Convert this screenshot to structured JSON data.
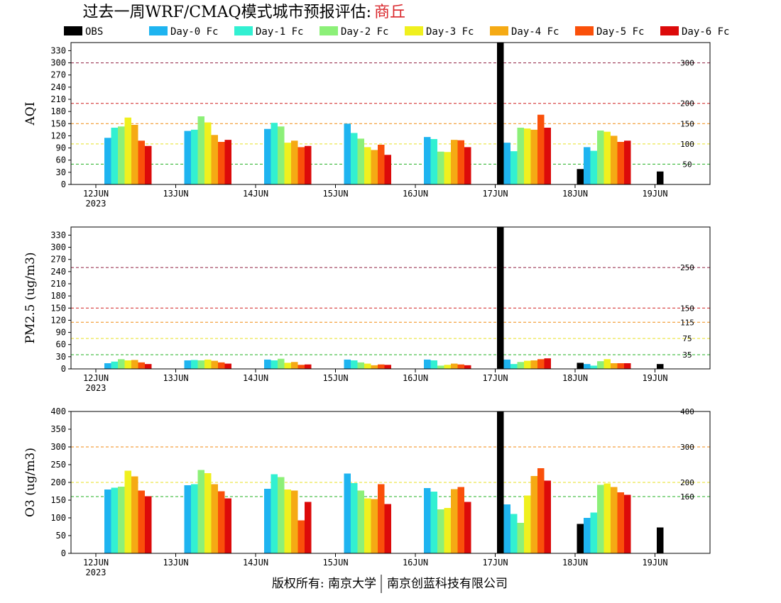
{
  "title_prefix": "过去一周WRF/CMAQ模式城市预报评估:",
  "city": "商丘",
  "footer": {
    "left": "版权所有: 南京大学",
    "right": "南京创蓝科技有限公司"
  },
  "colors": {
    "OBS": "#000000",
    "Day-0 Fc": "#1eb4f0",
    "Day-1 Fc": "#32f0d2",
    "Day-2 Fc": "#8cf078",
    "Day-3 Fc": "#f0f01e",
    "Day-4 Fc": "#f5aa14",
    "Day-5 Fc": "#fa500a",
    "Day-6 Fc": "#dc0a0a"
  },
  "chart_data": [
    {
      "type": "bar",
      "ylabel": "AQI",
      "ylim": [
        0,
        350
      ],
      "yticks": [
        0,
        30,
        60,
        90,
        120,
        150,
        180,
        210,
        240,
        270,
        300,
        330
      ],
      "categories": [
        "12JUN",
        "13JUN",
        "14JUN",
        "15JUN",
        "16JUN",
        "17JUN",
        "18JUN",
        "19JUN"
      ],
      "year_label": "2023",
      "ref_lines": [
        {
          "value": 50,
          "label": "50",
          "color": "#20b020"
        },
        {
          "value": 100,
          "label": "100",
          "color": "#e8e020"
        },
        {
          "value": 150,
          "label": "150",
          "color": "#f08a10"
        },
        {
          "value": 200,
          "label": "200",
          "color": "#d02020"
        },
        {
          "value": 300,
          "label": "300",
          "color": "#902040"
        }
      ],
      "series": [
        {
          "name": "OBS",
          "values": [
            null,
            null,
            null,
            null,
            null,
            350,
            38,
            32
          ]
        },
        {
          "name": "Day-0 Fc",
          "values": [
            115,
            132,
            137,
            150,
            117,
            103,
            92,
            null
          ]
        },
        {
          "name": "Day-1 Fc",
          "values": [
            140,
            135,
            152,
            127,
            112,
            82,
            83,
            null
          ]
        },
        {
          "name": "Day-2 Fc",
          "values": [
            143,
            168,
            143,
            113,
            81,
            140,
            133,
            null
          ]
        },
        {
          "name": "Day-3 Fc",
          "values": [
            165,
            153,
            103,
            92,
            80,
            138,
            130,
            null
          ]
        },
        {
          "name": "Day-4 Fc",
          "values": [
            147,
            122,
            108,
            85,
            110,
            135,
            120,
            null
          ]
        },
        {
          "name": "Day-5 Fc",
          "values": [
            108,
            105,
            92,
            98,
            109,
            172,
            105,
            null
          ]
        },
        {
          "name": "Day-6 Fc",
          "values": [
            95,
            110,
            95,
            73,
            92,
            140,
            108,
            null
          ]
        }
      ]
    },
    {
      "type": "bar",
      "ylabel": "PM2.5 (ug/m3)",
      "ylim": [
        0,
        350
      ],
      "yticks": [
        0,
        30,
        60,
        90,
        120,
        150,
        180,
        210,
        240,
        270,
        300,
        330
      ],
      "categories": [
        "12JUN",
        "13JUN",
        "14JUN",
        "15JUN",
        "16JUN",
        "17JUN",
        "18JUN",
        "19JUN"
      ],
      "year_label": "2023",
      "ref_lines": [
        {
          "value": 35,
          "label": "35",
          "color": "#20b020"
        },
        {
          "value": 75,
          "label": "75",
          "color": "#e8e020"
        },
        {
          "value": 115,
          "label": "115",
          "color": "#f08a10"
        },
        {
          "value": 150,
          "label": "150",
          "color": "#d02020"
        },
        {
          "value": 250,
          "label": "250",
          "color": "#902040"
        }
      ],
      "series": [
        {
          "name": "OBS",
          "values": [
            null,
            null,
            null,
            null,
            null,
            350,
            15,
            12
          ]
        },
        {
          "name": "Day-0 Fc",
          "values": [
            14,
            21,
            23,
            23,
            23,
            23,
            12,
            null
          ]
        },
        {
          "name": "Day-1 Fc",
          "values": [
            18,
            22,
            21,
            21,
            21,
            12,
            8,
            null
          ]
        },
        {
          "name": "Day-2 Fc",
          "values": [
            24,
            21,
            25,
            16,
            8,
            17,
            19,
            null
          ]
        },
        {
          "name": "Day-3 Fc",
          "values": [
            21,
            23,
            15,
            13,
            10,
            20,
            24,
            null
          ]
        },
        {
          "name": "Day-4 Fc",
          "values": [
            22,
            20,
            17,
            9,
            13,
            21,
            14,
            null
          ]
        },
        {
          "name": "Day-5 Fc",
          "values": [
            16,
            16,
            10,
            11,
            11,
            24,
            14,
            null
          ]
        },
        {
          "name": "Day-6 Fc",
          "values": [
            12,
            13,
            11,
            10,
            9,
            26,
            14,
            null
          ]
        }
      ]
    },
    {
      "type": "bar",
      "ylabel": "O3 (ug/m3)",
      "ylim": [
        0,
        400
      ],
      "yticks": [
        0,
        50,
        100,
        150,
        200,
        250,
        300,
        350,
        400
      ],
      "categories": [
        "12JUN",
        "13JUN",
        "14JUN",
        "15JUN",
        "16JUN",
        "17JUN",
        "18JUN",
        "19JUN"
      ],
      "year_label": "2023",
      "ref_lines": [
        {
          "value": 160,
          "label": "160",
          "color": "#20b020"
        },
        {
          "value": 200,
          "label": "200",
          "color": "#e8e020"
        },
        {
          "value": 300,
          "label": "300",
          "color": "#f08a10"
        },
        {
          "value": 400,
          "label": "400",
          "color": "#d02020"
        }
      ],
      "series": [
        {
          "name": "OBS",
          "values": [
            null,
            null,
            null,
            null,
            null,
            400,
            83,
            73
          ]
        },
        {
          "name": "Day-0 Fc",
          "values": [
            180,
            192,
            182,
            225,
            184,
            138,
            100,
            null
          ]
        },
        {
          "name": "Day-1 Fc",
          "values": [
            185,
            195,
            223,
            198,
            174,
            111,
            115,
            null
          ]
        },
        {
          "name": "Day-2 Fc",
          "values": [
            188,
            235,
            215,
            177,
            124,
            86,
            193,
            null
          ]
        },
        {
          "name": "Day-3 Fc",
          "values": [
            233,
            226,
            180,
            155,
            128,
            163,
            197,
            null
          ]
        },
        {
          "name": "Day-4 Fc",
          "values": [
            217,
            195,
            177,
            153,
            181,
            218,
            187,
            null
          ]
        },
        {
          "name": "Day-5 Fc",
          "values": [
            177,
            175,
            93,
            195,
            187,
            240,
            172,
            null
          ]
        },
        {
          "name": "Day-6 Fc",
          "values": [
            161,
            155,
            145,
            139,
            145,
            205,
            165,
            null
          ]
        }
      ]
    }
  ]
}
